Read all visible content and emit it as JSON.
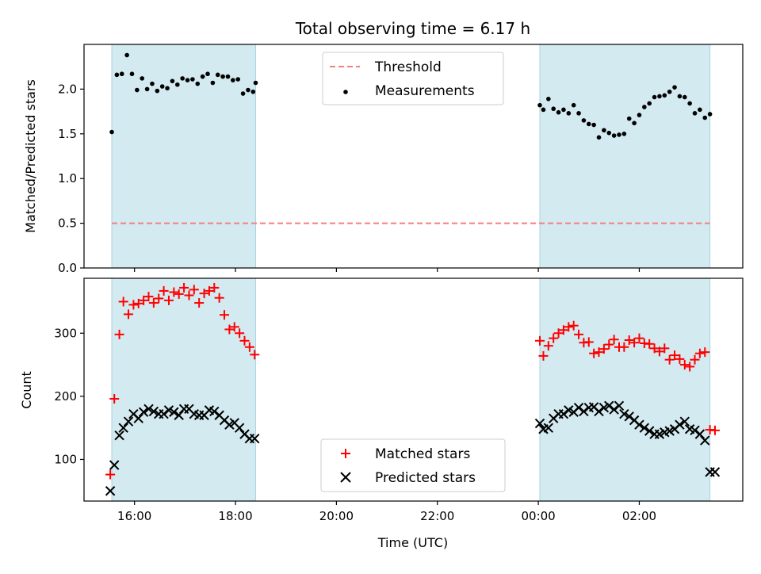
{
  "chart_data": {
    "title": "Total observing time = 6.17 h",
    "xlabel": "Time (UTC)",
    "x_unit": "hours since 00:00 UTC of first night",
    "xlim": [
      15.0,
      28.05
    ],
    "xticks": [
      {
        "value": 16,
        "label": "16:00"
      },
      {
        "value": 18,
        "label": "18:00"
      },
      {
        "value": 20,
        "label": "20:00"
      },
      {
        "value": 22,
        "label": "22:00"
      },
      {
        "value": 24,
        "label": "00:00"
      },
      {
        "value": 26,
        "label": "02:00"
      }
    ],
    "shaded_intervals": [
      [
        15.55,
        18.4
      ],
      [
        24.03,
        27.4
      ]
    ],
    "shade_color": "#d3eaf0",
    "panels": [
      {
        "type": "scatter",
        "ylabel": "Matched/Predicted stars",
        "ylim": [
          0.0,
          2.5
        ],
        "yticks": [
          0.0,
          0.5,
          1.0,
          1.5,
          2.0
        ],
        "threshold": {
          "name": "Threshold",
          "value": 0.5,
          "x_range": [
            15.55,
            27.4
          ],
          "color": "#f47f7f"
        },
        "series": [
          {
            "name": "Measurements",
            "marker": "dot",
            "color": "#000000",
            "x": [
              15.55,
              15.65,
              15.75,
              15.85,
              15.95,
              16.05,
              16.15,
              16.25,
              16.35,
              16.45,
              16.55,
              16.65,
              16.75,
              16.85,
              16.95,
              17.05,
              17.15,
              17.25,
              17.35,
              17.45,
              17.55,
              17.65,
              17.75,
              17.85,
              17.95,
              18.05,
              18.15,
              18.25,
              18.35,
              18.4,
              24.03,
              24.1,
              24.2,
              24.3,
              24.4,
              24.5,
              24.6,
              24.7,
              24.8,
              24.9,
              25.0,
              25.1,
              25.2,
              25.3,
              25.4,
              25.5,
              25.6,
              25.7,
              25.8,
              25.9,
              26.0,
              26.1,
              26.2,
              26.3,
              26.4,
              26.5,
              26.6,
              26.7,
              26.8,
              26.9,
              27.0,
              27.1,
              27.2,
              27.3,
              27.4
            ],
            "y": [
              1.52,
              2.16,
              2.17,
              2.38,
              2.17,
              1.99,
              2.12,
              2.0,
              2.06,
              1.98,
              2.03,
              2.01,
              2.09,
              2.05,
              2.12,
              2.1,
              2.11,
              2.06,
              2.14,
              2.17,
              2.07,
              2.16,
              2.14,
              2.14,
              2.1,
              2.11,
              1.95,
              1.99,
              1.97,
              2.07,
              1.82,
              1.77,
              1.89,
              1.78,
              1.74,
              1.77,
              1.73,
              1.82,
              1.73,
              1.65,
              1.61,
              1.6,
              1.46,
              1.54,
              1.51,
              1.48,
              1.49,
              1.5,
              1.67,
              1.62,
              1.71,
              1.8,
              1.84,
              1.91,
              1.92,
              1.93,
              1.97,
              2.02,
              1.92,
              1.91,
              1.84,
              1.73,
              1.77,
              1.68,
              1.72
            ]
          }
        ]
      },
      {
        "type": "scatter",
        "ylabel": "Count",
        "ylim": [
          34,
          387
        ],
        "yticks": [
          100,
          200,
          300
        ],
        "series": [
          {
            "name": "Matched stars",
            "marker": "plus",
            "color": "#ff0000",
            "x": [
              15.52,
              15.6,
              15.7,
              15.78,
              15.88,
              15.98,
              16.08,
              16.18,
              16.28,
              16.38,
              16.48,
              16.58,
              16.68,
              16.78,
              16.88,
              16.98,
              17.08,
              17.18,
              17.28,
              17.38,
              17.48,
              17.58,
              17.68,
              17.78,
              17.88,
              17.98,
              18.08,
              18.18,
              18.28,
              18.38,
              24.03,
              24.1,
              24.2,
              24.3,
              24.4,
              24.5,
              24.6,
              24.7,
              24.8,
              24.9,
              25.0,
              25.1,
              25.2,
              25.3,
              25.4,
              25.5,
              25.6,
              25.7,
              25.8,
              25.9,
              26.0,
              26.1,
              26.2,
              26.3,
              26.4,
              26.5,
              26.6,
              26.7,
              26.8,
              26.9,
              27.0,
              27.1,
              27.2,
              27.3,
              27.4,
              27.5
            ],
            "y": [
              76,
              196,
              298,
              350,
              330,
              345,
              347,
              352,
              358,
              348,
              355,
              367,
              352,
              365,
              362,
              372,
              360,
              369,
              348,
              363,
              367,
              372,
              356,
              329,
              306,
              310,
              300,
              288,
              278,
              266,
              288,
              264,
              280,
              292,
              300,
              305,
              310,
              312,
              298,
              285,
              286,
              268,
              270,
              275,
              282,
              290,
              278,
              278,
              289,
              285,
              292,
              284,
              283,
              276,
              271,
              276,
              258,
              265,
              259,
              250,
              247,
              258,
              268,
              270,
              147,
              146
            ]
          },
          {
            "name": "Predicted stars",
            "marker": "x",
            "color": "#000000",
            "x": [
              15.52,
              15.6,
              15.7,
              15.78,
              15.88,
              15.98,
              16.08,
              16.18,
              16.28,
              16.38,
              16.48,
              16.58,
              16.68,
              16.78,
              16.88,
              16.98,
              17.08,
              17.18,
              17.28,
              17.38,
              17.48,
              17.58,
              17.68,
              17.78,
              17.88,
              17.98,
              18.08,
              18.18,
              18.28,
              18.38,
              24.03,
              24.1,
              24.2,
              24.3,
              24.4,
              24.5,
              24.6,
              24.7,
              24.8,
              24.9,
              25.0,
              25.1,
              25.2,
              25.3,
              25.4,
              25.5,
              25.6,
              25.7,
              25.8,
              25.9,
              26.0,
              26.1,
              26.2,
              26.3,
              26.4,
              26.5,
              26.6,
              26.7,
              26.8,
              26.9,
              27.0,
              27.1,
              27.2,
              27.3,
              27.4,
              27.5
            ],
            "y": [
              50,
              91,
              138,
              150,
              160,
              172,
              165,
              175,
              180,
              176,
              172,
              172,
              178,
              175,
              170,
              180,
              180,
              172,
              170,
              170,
              178,
              176,
              170,
              162,
              155,
              158,
              150,
              140,
              133,
              133,
              157,
              148,
              150,
              165,
              172,
              172,
              178,
              175,
              182,
              176,
              182,
              183,
              176,
              182,
              185,
              179,
              185,
              172,
              168,
              162,
              155,
              150,
              145,
              140,
              140,
              143,
              145,
              148,
              155,
              160,
              148,
              146,
              140,
              130,
              80,
              80
            ]
          }
        ]
      }
    ],
    "legends": [
      {
        "panel": 0,
        "placement": "upper-center",
        "entries": [
          "Threshold",
          "Measurements"
        ]
      },
      {
        "panel": 1,
        "placement": "lower-center",
        "entries": [
          "Matched stars",
          "Predicted stars"
        ]
      }
    ]
  }
}
